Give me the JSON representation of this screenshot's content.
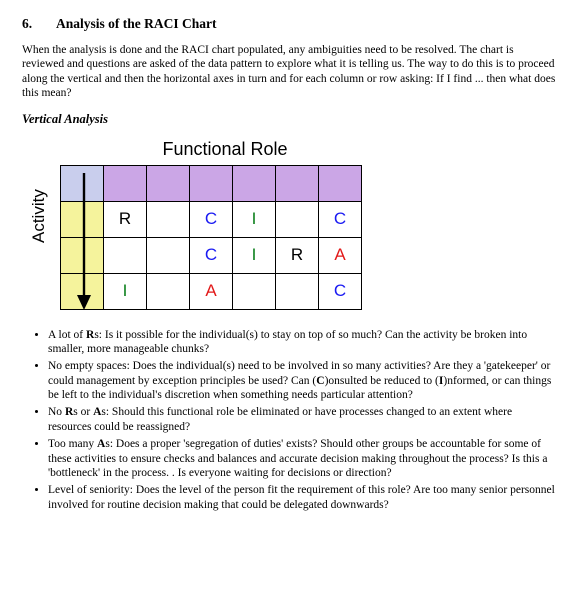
{
  "section_number": "6.",
  "section_title": "Analysis of the RACI Chart",
  "intro": "When the analysis is done and the RACI chart populated, any ambiguities need to be resolved. The chart is reviewed and questions are asked of the data pattern to explore what it is telling us. The way to do this is to proceed along the vertical and then the horizontal axes in turn and for each column or row asking: If I find ... then what does this mean?",
  "subheading": "Vertical Analysis",
  "chart": {
    "top_title": "Functional Role",
    "side_title": "Activity",
    "cols": 6,
    "rows": 4,
    "header_corner_bg": "#c9ceed",
    "header_col_bg": "#cba6e6",
    "header_row_bg": "#f5f39c",
    "cell_bg": "#ffffff",
    "border_color": "#000000",
    "font_family": "Arial",
    "cell_font_size": 17,
    "colors": {
      "R": "#000000",
      "C": "#1a1af2",
      "I": "#0a7f1a",
      "A": "#e21a1a"
    },
    "data": [
      [
        "R",
        "",
        "C",
        "I",
        "",
        "C"
      ],
      [
        "",
        "",
        "C",
        "I",
        "R",
        "A"
      ],
      [
        "I",
        "",
        "A",
        "",
        "",
        "C"
      ]
    ],
    "arrow": {
      "from_row": 0,
      "to_row": 3,
      "column": 0,
      "stroke": "#000000",
      "width": 2.2
    }
  },
  "bullets": [
    {
      "lead": "A lot of ",
      "bold": "R",
      "tail": "s: Is it possible for the individual(s) to stay on top of so much? Can the activity be broken into smaller, more manageable chunks?"
    },
    {
      "lead": "No empty spaces: Does the individual(s) need to be involved in so many activities? Are they a 'gatekeeper' or could management by exception principles be used? Can (",
      "bold": "C",
      "tail": ")onsulted be reduced to (I)nformed, or can things be left to the individual's discretion when something needs particular attention?",
      "bold2": "I",
      "tail_pre_bold2": ")onsulted be reduced to (",
      "tail_post_bold2": ")nformed, or can things be left to the individual's discretion when something needs particular attention?"
    },
    {
      "lead": "No ",
      "bold": "R",
      "mid": "s or ",
      "bold2": "A",
      "tail": "s: Should this functional role be eliminated or have processes changed to an extent where resources could be reassigned?"
    },
    {
      "lead": "Too many ",
      "bold": "A",
      "tail": "s: Does a proper 'segregation of duties' exists? Should other groups be accountable for some of these activities to ensure checks and balances and accurate decision making throughout the process? Is this a 'bottleneck' in the process. . Is everyone waiting for decisions or direction?"
    },
    {
      "lead": "Level of seniority: Does the level of the person fit the requirement of this role? Are too many senior personnel involved for routine decision making that could be delegated downwards?",
      "bold": "",
      "tail": ""
    }
  ]
}
